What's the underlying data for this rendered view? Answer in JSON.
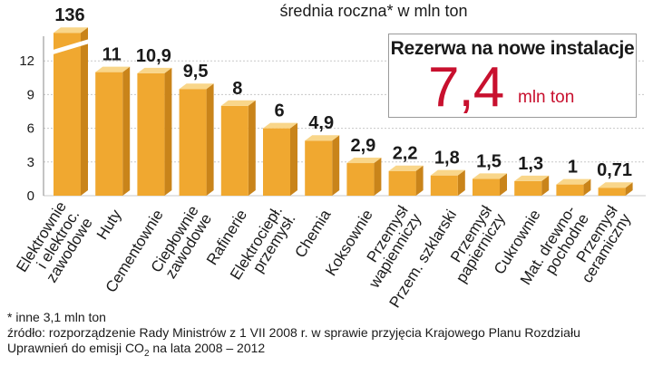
{
  "chart_data": {
    "type": "bar",
    "title": "",
    "subtitle": "średnia roczna* w mln ton",
    "xlabel": "",
    "ylabel": "",
    "ylim": [
      0,
      13
    ],
    "y_ticks": [
      0,
      3,
      6,
      9,
      12
    ],
    "axis_broken_first_bar": true,
    "grid": true,
    "categories": [
      [
        "Elektrownie",
        "i elektroc.",
        "zawodowe"
      ],
      [
        "Huty"
      ],
      [
        "Cementownie"
      ],
      [
        "Ciepłownie",
        "zawodowe"
      ],
      [
        "Rafinerie"
      ],
      [
        "Elektrociepł.",
        "przemysł."
      ],
      [
        "Chemia"
      ],
      [
        "Koksownie"
      ],
      [
        "Przemysł",
        "wapienniczy"
      ],
      [
        "Przem. szklarski"
      ],
      [
        "Przemysł",
        "papierniczy"
      ],
      [
        "Cukrownie"
      ],
      [
        "Mat. drewno-",
        "pochodne"
      ],
      [
        "Przemysł",
        "ceramiczny"
      ]
    ],
    "values": [
      136,
      11,
      10.9,
      9.5,
      8,
      6,
      4.9,
      2.9,
      2.2,
      1.8,
      1.5,
      1.3,
      1,
      0.71
    ],
    "value_labels": [
      "136",
      "11",
      "10,9",
      "9,5",
      "8",
      "6",
      "4,9",
      "2,9",
      "2,2",
      "1,8",
      "1,5",
      "1,3",
      "1",
      "0,71"
    ]
  },
  "reserve": {
    "title": "Rezerwa na nowe instalacje",
    "value": "7,4",
    "unit": "mln ton"
  },
  "footnotes": {
    "note": "* inne 3,1 mln ton",
    "source": "źródło: rozporządzenie Rady Ministrów z 1 VII 2008 r. w sprawie przyjęcia Krajowego Planu Rozdziału",
    "source_line2_a": "Uprawnień do emisji CO",
    "source_line2_sub": "2",
    "source_line2_b": " na lata 2008 – 2012"
  },
  "colors": {
    "bar_front": "#f0a830",
    "bar_top": "#f9d68a",
    "bar_side": "#c9841a",
    "grid": "#c8c8c8",
    "accent": "#c8102e"
  }
}
